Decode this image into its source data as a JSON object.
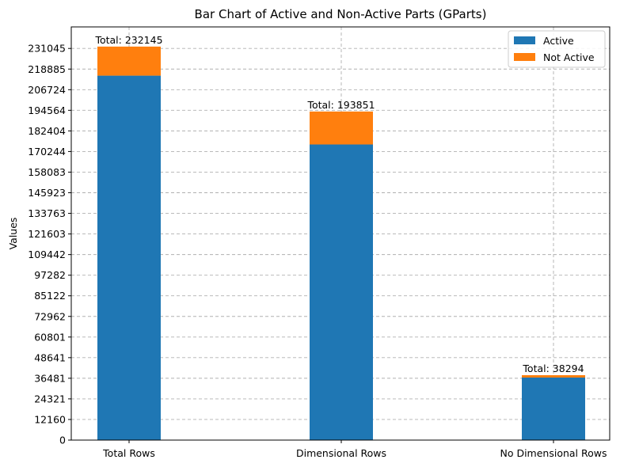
{
  "chart_data": {
    "type": "bar",
    "stacked": true,
    "title": "Bar Chart of Active and Non-Active Parts (GParts)",
    "xlabel": "",
    "ylabel": "Values",
    "categories": [
      "Total Rows",
      "Dimensional Rows",
      "No Dimensional Rows"
    ],
    "series": [
      {
        "name": "Active",
        "color": "#1f77b4",
        "values": [
          215000,
          174400,
          36900
        ]
      },
      {
        "name": "Not Active",
        "color": "#ff7f0e",
        "values": [
          17145,
          19451,
          1394
        ]
      }
    ],
    "totals": [
      "Total: 232145",
      "Total: 193851",
      "Total: 38294"
    ],
    "yticks": [
      "0",
      "12160",
      "24321",
      "36481",
      "48641",
      "60801",
      "72962",
      "85122",
      "97282",
      "109442",
      "121603",
      "133763",
      "145923",
      "158083",
      "170244",
      "182404",
      "194564",
      "206724",
      "218885",
      "231045"
    ],
    "ytick_values": [
      0,
      12160,
      24321,
      36481,
      48641,
      60801,
      72962,
      85122,
      97282,
      109442,
      121603,
      133763,
      145923,
      158083,
      170244,
      182404,
      194564,
      206724,
      218885,
      231045
    ],
    "ylim": [
      0,
      243752
    ],
    "grid": true,
    "legend_position": "top-right"
  }
}
